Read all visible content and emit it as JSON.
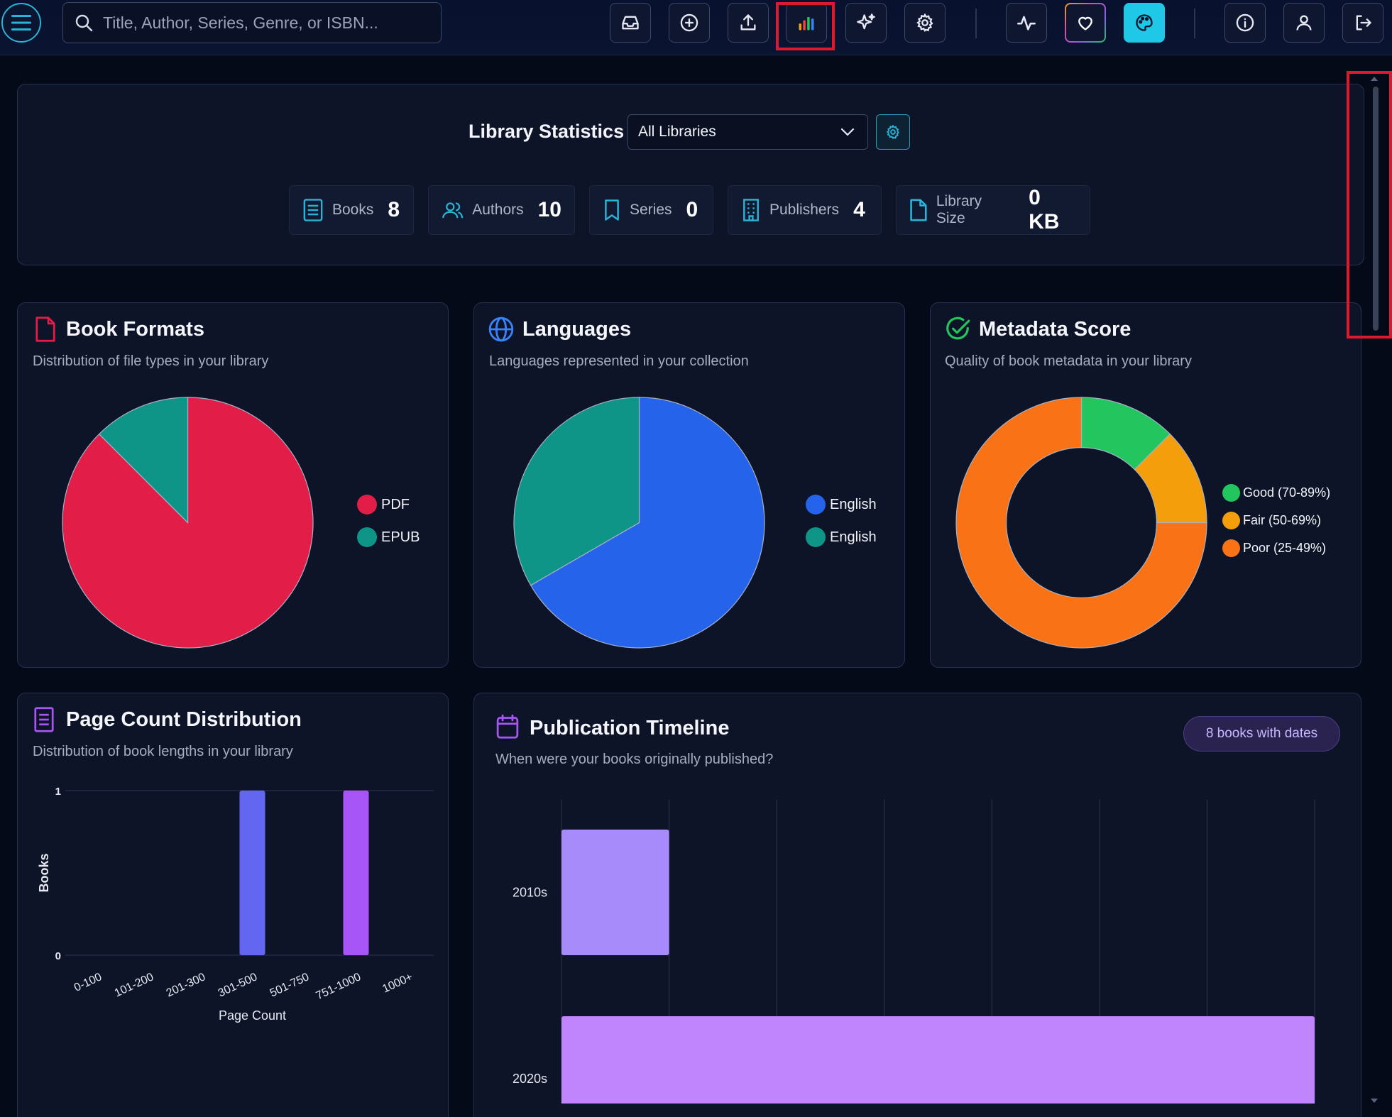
{
  "search": {
    "placeholder": "Title, Author, Series, Genre, or ISBN..."
  },
  "toolbar": {
    "buttons": [
      {
        "icon": "inbox-icon"
      },
      {
        "icon": "plus-circle-icon"
      },
      {
        "icon": "upload-icon"
      },
      {
        "icon": "bar-chart-icon",
        "active": true
      },
      {
        "icon": "sparkles-icon"
      },
      {
        "icon": "gear-icon"
      },
      {
        "icon": "activity-icon"
      },
      {
        "icon": "heart-icon"
      },
      {
        "icon": "palette-icon"
      },
      {
        "icon": "info-icon"
      },
      {
        "icon": "user-icon"
      },
      {
        "icon": "logout-icon"
      }
    ]
  },
  "stats": {
    "title": "Library Statistics",
    "library_select": "All Libraries",
    "items": [
      {
        "label": "Books",
        "value": "8",
        "icon": "book-list-icon"
      },
      {
        "label": "Authors",
        "value": "10",
        "icon": "users-icon"
      },
      {
        "label": "Series",
        "value": "0",
        "icon": "bookmark-icon"
      },
      {
        "label": "Publishers",
        "value": "4",
        "icon": "building-icon"
      },
      {
        "label": "Library Size",
        "value": "0 KB",
        "icon": "file-icon"
      }
    ]
  },
  "formats": {
    "title": "Book Formats",
    "subtitle": "Distribution of file types in your library",
    "legend": [
      "PDF",
      "EPUB"
    ]
  },
  "languages": {
    "title": "Languages",
    "subtitle": "Languages represented in your collection",
    "legend": [
      "English",
      "English"
    ]
  },
  "metadata": {
    "title": "Metadata Score",
    "subtitle": "Quality of book metadata in your library",
    "legend": [
      "Good (70-89%)",
      "Fair (50-69%)",
      "Poor (25-49%)"
    ]
  },
  "pages": {
    "title": "Page Count Distribution",
    "subtitle": "Distribution of book lengths in your library",
    "xlabel": "Page Count",
    "ylabel": "Books"
  },
  "timeline": {
    "title": "Publication Timeline",
    "subtitle": "When were your books originally published?",
    "badge": "8 books with dates"
  },
  "chart_data": [
    {
      "type": "pie",
      "name": "formats",
      "labels": [
        "PDF",
        "EPUB"
      ],
      "values": [
        7,
        1
      ],
      "colors": [
        "#e11d48",
        "#0f9488"
      ]
    },
    {
      "type": "pie",
      "name": "languages",
      "labels": [
        "English",
        "English"
      ],
      "values": [
        2,
        1
      ],
      "colors": [
        "#2563eb",
        "#0f9488"
      ]
    },
    {
      "type": "pie",
      "name": "metadata",
      "donut": true,
      "labels": [
        "Good (70-89%)",
        "Fair (50-69%)",
        "Poor (25-49%)"
      ],
      "values": [
        1,
        1,
        6
      ],
      "colors": [
        "#22c55e",
        "#f59e0b",
        "#f97316"
      ]
    },
    {
      "type": "bar",
      "name": "pages",
      "categories": [
        "0-100",
        "101-200",
        "201-300",
        "301-500",
        "501-750",
        "751-1000",
        "1000+"
      ],
      "values": [
        0,
        0,
        0,
        1,
        0,
        1,
        0
      ],
      "colors": [
        "#6366f1",
        "#6366f1",
        "#6366f1",
        "#6366f1",
        "#a855f7",
        "#a855f7",
        "#a855f7"
      ],
      "ylim": [
        0,
        1
      ],
      "yticks": [
        "0",
        "1"
      ]
    },
    {
      "type": "bar",
      "name": "timeline",
      "orientation": "horizontal",
      "categories": [
        "2010s",
        "2020s"
      ],
      "values": [
        1,
        7
      ],
      "colors": [
        "#a78bfa",
        "#c084fc"
      ],
      "xlim": [
        0,
        7
      ]
    }
  ]
}
